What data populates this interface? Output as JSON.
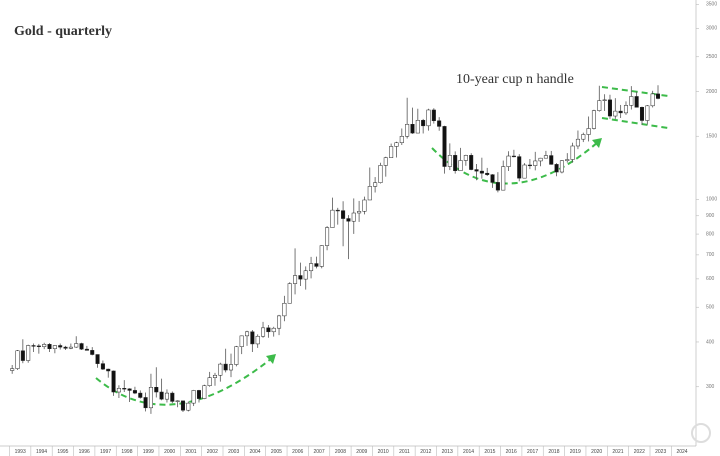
{
  "chart_data": {
    "type": "candlestick",
    "title": "Gold - quarterly",
    "annotation": "10-year cup n handle",
    "log_scale": true,
    "ylim": [
      205,
      3600
    ],
    "yticks": [
      300,
      400,
      500,
      600,
      700,
      800,
      900,
      1000,
      1500,
      2000,
      2500,
      3000,
      3500
    ],
    "categories": [
      "1993",
      "1994",
      "1995",
      "1996",
      "1997",
      "1998",
      "1999",
      "2000",
      "2001",
      "2002",
      "2003",
      "2004",
      "2005",
      "2006",
      "2007",
      "2008",
      "2009",
      "2010",
      "2011",
      "2012",
      "2013",
      "2014",
      "2015",
      "2016",
      "2017",
      "2018",
      "2019",
      "2020",
      "2021",
      "2022",
      "2023",
      "2024"
    ],
    "up_color": "#ffffff",
    "down_color": "#111111",
    "wick_color": "#555555",
    "candles": [
      [
        333,
        345,
        326,
        337
      ],
      [
        337,
        380,
        334,
        378
      ],
      [
        378,
        407,
        349,
        355
      ],
      [
        355,
        393,
        350,
        391
      ],
      [
        391,
        396,
        375,
        390
      ],
      [
        390,
        395,
        371,
        388
      ],
      [
        388,
        398,
        382,
        394
      ],
      [
        394,
        397,
        375,
        383
      ],
      [
        383,
        392,
        372,
        391
      ],
      [
        391,
        396,
        381,
        387
      ],
      [
        387,
        390,
        380,
        384
      ],
      [
        384,
        396,
        382,
        387
      ],
      [
        387,
        415,
        385,
        396
      ],
      [
        396,
        398,
        380,
        382
      ],
      [
        382,
        390,
        379,
        379
      ],
      [
        379,
        387,
        367,
        369
      ],
      [
        369,
        369,
        339,
        348
      ],
      [
        348,
        355,
        334,
        336
      ],
      [
        336,
        337,
        318,
        332
      ],
      [
        332,
        333,
        283,
        290
      ],
      [
        290,
        303,
        279,
        297
      ],
      [
        297,
        313,
        290,
        296
      ],
      [
        296,
        297,
        272,
        293
      ],
      [
        293,
        300,
        286,
        288
      ],
      [
        288,
        293,
        278,
        280
      ],
      [
        280,
        289,
        256,
        262
      ],
      [
        262,
        326,
        252,
        299
      ],
      [
        299,
        340,
        280,
        290
      ],
      [
        290,
        316,
        275,
        277
      ],
      [
        277,
        295,
        271,
        288
      ],
      [
        288,
        291,
        270,
        273
      ],
      [
        273,
        275,
        263,
        274
      ],
      [
        274,
        274,
        255,
        258
      ],
      [
        258,
        273,
        256,
        270
      ],
      [
        270,
        294,
        265,
        293
      ],
      [
        293,
        294,
        271,
        278
      ],
      [
        278,
        304,
        277,
        302
      ],
      [
        302,
        330,
        300,
        318
      ],
      [
        318,
        328,
        302,
        323
      ],
      [
        323,
        350,
        310,
        347
      ],
      [
        347,
        383,
        329,
        334
      ],
      [
        334,
        371,
        319,
        346
      ],
      [
        346,
        390,
        342,
        388
      ],
      [
        388,
        417,
        370,
        416
      ],
      [
        416,
        430,
        390,
        427
      ],
      [
        427,
        432,
        375,
        395
      ],
      [
        395,
        420,
        385,
        415
      ],
      [
        415,
        455,
        411,
        438
      ],
      [
        438,
        446,
        411,
        427
      ],
      [
        427,
        441,
        414,
        437
      ],
      [
        437,
        476,
        418,
        473
      ],
      [
        473,
        538,
        457,
        513
      ],
      [
        513,
        587,
        513,
        582
      ],
      [
        582,
        730,
        543,
        613
      ],
      [
        613,
        666,
        573,
        599
      ],
      [
        599,
        650,
        560,
        632
      ],
      [
        632,
        691,
        602,
        662
      ],
      [
        662,
        692,
        642,
        650
      ],
      [
        650,
        745,
        642,
        743
      ],
      [
        743,
        842,
        721,
        834
      ],
      [
        834,
        1011,
        834,
        933
      ],
      [
        933,
        947,
        850,
        930
      ],
      [
        930,
        988,
        740,
        884
      ],
      [
        884,
        904,
        681,
        869
      ],
      [
        869,
        1006,
        801,
        916
      ],
      [
        916,
        990,
        865,
        926
      ],
      [
        926,
        1018,
        908,
        996
      ],
      [
        996,
        1227,
        996,
        1087
      ],
      [
        1087,
        1154,
        1045,
        1113
      ],
      [
        1113,
        1265,
        1107,
        1244
      ],
      [
        1244,
        1315,
        1157,
        1307
      ],
      [
        1307,
        1431,
        1307,
        1405
      ],
      [
        1405,
        1448,
        1309,
        1439
      ],
      [
        1439,
        1577,
        1418,
        1500
      ],
      [
        1500,
        1921,
        1478,
        1620
      ],
      [
        1620,
        1803,
        1523,
        1531
      ],
      [
        1531,
        1790,
        1531,
        1662
      ],
      [
        1662,
        1677,
        1527,
        1604
      ],
      [
        1604,
        1790,
        1555,
        1776
      ],
      [
        1776,
        1796,
        1627,
        1657
      ],
      [
        1657,
        1696,
        1554,
        1598
      ],
      [
        1598,
        1605,
        1180,
        1235
      ],
      [
        1235,
        1433,
        1207,
        1327
      ],
      [
        1327,
        1361,
        1180,
        1202
      ],
      [
        1202,
        1392,
        1202,
        1284
      ],
      [
        1284,
        1332,
        1241,
        1327
      ],
      [
        1327,
        1345,
        1206,
        1211
      ],
      [
        1211,
        1255,
        1131,
        1199
      ],
      [
        1199,
        1307,
        1142,
        1183
      ],
      [
        1183,
        1224,
        1162,
        1172
      ],
      [
        1172,
        1176,
        1077,
        1115
      ],
      [
        1115,
        1191,
        1046,
        1061
      ],
      [
        1061,
        1283,
        1061,
        1234
      ],
      [
        1234,
        1362,
        1200,
        1321
      ],
      [
        1321,
        1375,
        1310,
        1316
      ],
      [
        1316,
        1337,
        1123,
        1146
      ],
      [
        1146,
        1262,
        1146,
        1247
      ],
      [
        1247,
        1296,
        1214,
        1242
      ],
      [
        1242,
        1357,
        1205,
        1280
      ],
      [
        1280,
        1305,
        1237,
        1303
      ],
      [
        1303,
        1366,
        1303,
        1325
      ],
      [
        1325,
        1365,
        1250,
        1252
      ],
      [
        1252,
        1262,
        1160,
        1192
      ],
      [
        1192,
        1287,
        1182,
        1282
      ],
      [
        1282,
        1346,
        1266,
        1292
      ],
      [
        1292,
        1439,
        1266,
        1409
      ],
      [
        1409,
        1557,
        1381,
        1472
      ],
      [
        1472,
        1535,
        1445,
        1517
      ],
      [
        1517,
        1703,
        1451,
        1577
      ],
      [
        1577,
        1779,
        1567,
        1768
      ],
      [
        1768,
        2075,
        1757,
        1886
      ],
      [
        1886,
        1965,
        1765,
        1895
      ],
      [
        1895,
        1959,
        1677,
        1708
      ],
      [
        1708,
        1916,
        1677,
        1763
      ],
      [
        1763,
        1834,
        1687,
        1743
      ],
      [
        1743,
        1877,
        1721,
        1829
      ],
      [
        1829,
        2070,
        1781,
        1937
      ],
      [
        1937,
        1998,
        1805,
        1807
      ],
      [
        1807,
        1814,
        1615,
        1660
      ],
      [
        1660,
        1833,
        1616,
        1824
      ],
      [
        1824,
        2009,
        1805,
        1969
      ],
      [
        1969,
        2081,
        1903,
        1912
      ]
    ]
  }
}
